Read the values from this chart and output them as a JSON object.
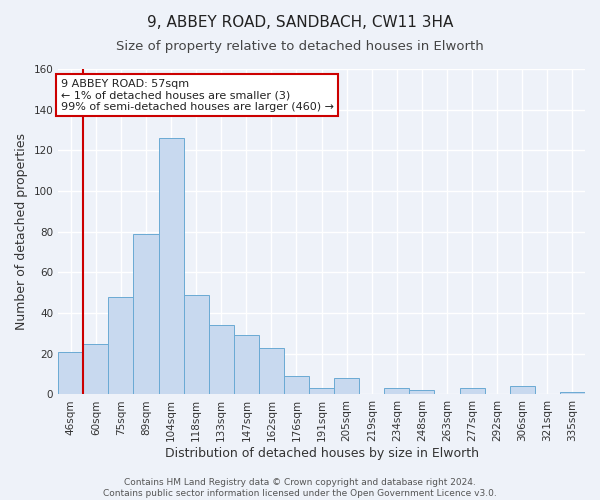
{
  "title": "9, ABBEY ROAD, SANDBACH, CW11 3HA",
  "subtitle": "Size of property relative to detached houses in Elworth",
  "xlabel": "Distribution of detached houses by size in Elworth",
  "ylabel": "Number of detached properties",
  "bar_labels": [
    "46sqm",
    "60sqm",
    "75sqm",
    "89sqm",
    "104sqm",
    "118sqm",
    "133sqm",
    "147sqm",
    "162sqm",
    "176sqm",
    "191sqm",
    "205sqm",
    "219sqm",
    "234sqm",
    "248sqm",
    "263sqm",
    "277sqm",
    "292sqm",
    "306sqm",
    "321sqm",
    "335sqm"
  ],
  "bar_values": [
    21,
    25,
    48,
    79,
    126,
    49,
    34,
    29,
    23,
    9,
    3,
    8,
    0,
    3,
    2,
    0,
    3,
    0,
    4,
    0,
    1
  ],
  "bar_color": "#c8d9ef",
  "bar_edge_color": "#6aaad4",
  "red_line_after_bar": 0,
  "highlight_color": "#cc0000",
  "ylim": [
    0,
    160
  ],
  "yticks": [
    0,
    20,
    40,
    60,
    80,
    100,
    120,
    140,
    160
  ],
  "annotation_title": "9 ABBEY ROAD: 57sqm",
  "annotation_line1": "← 1% of detached houses are smaller (3)",
  "annotation_line2": "99% of semi-detached houses are larger (460) →",
  "annotation_box_color": "#ffffff",
  "annotation_box_edge": "#cc0000",
  "footer_line1": "Contains HM Land Registry data © Crown copyright and database right 2024.",
  "footer_line2": "Contains public sector information licensed under the Open Government Licence v3.0.",
  "fig_background_color": "#eef2f9",
  "plot_background_color": "#eef2f9",
  "grid_color": "#ffffff",
  "title_fontsize": 11,
  "subtitle_fontsize": 9.5,
  "axis_label_fontsize": 9,
  "tick_fontsize": 7.5,
  "annotation_fontsize": 8,
  "footer_fontsize": 6.5
}
